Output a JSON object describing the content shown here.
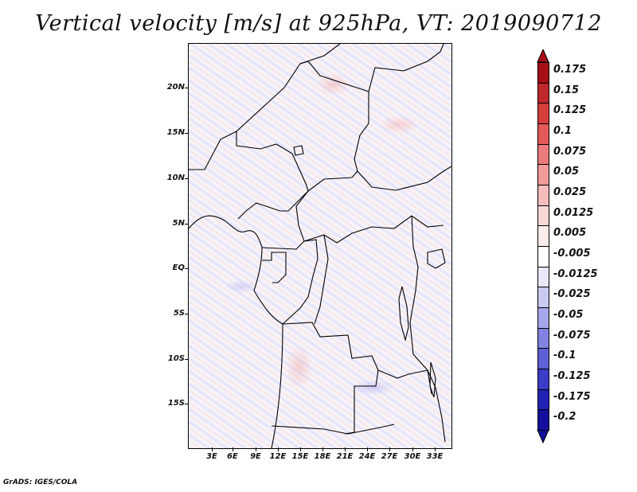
{
  "title": "Vertical velocity [m/s] at 925hPa, VT: 2019090712",
  "lat_labels": [
    "20N",
    "15N",
    "10N",
    "5N",
    "EQ",
    "5S",
    "10S",
    "15S"
  ],
  "lon_labels": [
    "3E",
    "6E",
    "9E",
    "12E",
    "15E",
    "18E",
    "21E",
    "24E",
    "27E",
    "30E",
    "33E"
  ],
  "colorbar": {
    "levels": [
      "0.175",
      "0.15",
      "0.125",
      "0.1",
      "0.075",
      "0.05",
      "0.025",
      "0.0125",
      "0.005",
      "-0.005",
      "-0.0125",
      "-0.025",
      "-0.05",
      "-0.075",
      "-0.1",
      "-0.125",
      "-0.175",
      "-0.2"
    ],
    "colors": [
      "#a50f15",
      "#c0282c",
      "#d63d3d",
      "#e35a5a",
      "#ec7b7b",
      "#f29b9b",
      "#f6bbbb",
      "#f9d6d6",
      "#fcecec",
      "#ffffff",
      "#e8e8fa",
      "#c9c9f2",
      "#a6a6ea",
      "#8282e0",
      "#5f5fd6",
      "#3c3cc8",
      "#2222b5",
      "#140f9a"
    ]
  },
  "credit": "GrADS: IGES/COLA"
}
